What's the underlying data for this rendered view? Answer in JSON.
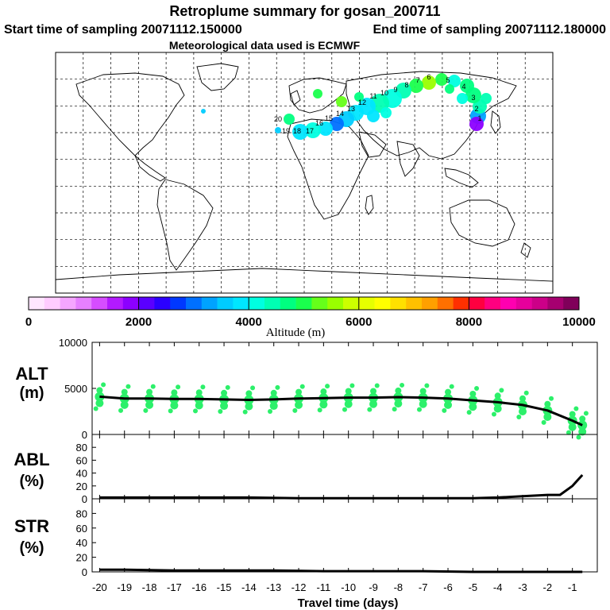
{
  "header": {
    "title": "Retroplume summary for gosan_200711",
    "start_label": "Start time of sampling 20071112.150000",
    "end_label": "End time of sampling 20071112.180000",
    "met_label": "Meteorological data used is ECMWF"
  },
  "colorbar": {
    "ticks": [
      "0",
      "2000",
      "4000",
      "6000",
      "8000",
      "10000"
    ],
    "label": "Altitude (m)",
    "colors": [
      "#ffe6ff",
      "#ffccff",
      "#f5a6ff",
      "#e680ff",
      "#d64dff",
      "#b31aff",
      "#8c00ff",
      "#5a00ff",
      "#2b00ff",
      "#0038ff",
      "#0070ff",
      "#00a3ff",
      "#00ccff",
      "#00e6ff",
      "#00ffe0",
      "#00ffb3",
      "#00ff80",
      "#1aff4d",
      "#66ff1a",
      "#99ff00",
      "#ccff00",
      "#e6ff00",
      "#ffff00",
      "#ffe000",
      "#ffc000",
      "#ffa000",
      "#ff7000",
      "#ff3000",
      "#ff0040",
      "#ff0080",
      "#ff00b0",
      "#e6009c",
      "#cc0088",
      "#a60070",
      "#80005a"
    ]
  },
  "map": {
    "coastline_color": "#000000",
    "labels": [
      "20",
      "19",
      "18",
      "17",
      "16",
      "15",
      "14",
      "13",
      "12",
      "11",
      "10",
      "9",
      "8",
      "7",
      "6",
      "5",
      "4",
      "3",
      "2",
      "1"
    ]
  },
  "chart_data": [
    {
      "type": "line",
      "panel": "ALT",
      "ylabel": "ALT\n(m)",
      "ylabel_line1": "ALT",
      "ylabel_line2": "(m)",
      "ylim": [
        0,
        10000
      ],
      "yticks": [
        "0",
        "5000",
        "10000"
      ],
      "x": [
        -20,
        -19,
        -18,
        -17,
        -16,
        -15,
        -14,
        -13,
        -12,
        -11,
        -10,
        -9,
        -8,
        -7,
        -6,
        -5,
        -4,
        -3,
        -2,
        -1,
        -0.6
      ],
      "mean_altitude": [
        4100,
        3900,
        3900,
        3850,
        3850,
        3800,
        3750,
        3800,
        3900,
        3950,
        4000,
        4000,
        4050,
        4000,
        3900,
        3700,
        3500,
        3200,
        2600,
        1500,
        1000
      ],
      "cluster_color": "#2cf06a",
      "line_color": "#000000"
    },
    {
      "type": "line",
      "panel": "ABL",
      "ylabel_line1": "ABL",
      "ylabel_line2": "(%)",
      "ylim": [
        0,
        100
      ],
      "yticks": [
        "0",
        "20",
        "40",
        "60",
        "80"
      ],
      "x": [
        -20,
        -18,
        -16,
        -14,
        -12,
        -10,
        -8,
        -6,
        -5,
        -4,
        -3,
        -2,
        -1.5,
        -1,
        -0.6
      ],
      "values": [
        2,
        2,
        2,
        2,
        1,
        1,
        1,
        1,
        1,
        2,
        4,
        6,
        6,
        20,
        37
      ]
    },
    {
      "type": "line",
      "panel": "STR",
      "ylabel_line1": "STR",
      "ylabel_line2": "(%)",
      "ylim": [
        0,
        100
      ],
      "yticks": [
        "0",
        "20",
        "40",
        "60",
        "80"
      ],
      "x": [
        -20,
        -19,
        -17,
        -15,
        -13,
        -11,
        -9,
        -7,
        -5,
        -3,
        -1,
        -0.6
      ],
      "values": [
        3,
        3,
        2,
        2,
        2,
        1,
        1,
        1,
        0,
        0,
        0,
        0
      ]
    }
  ],
  "xaxis": {
    "title": "Travel time (days)",
    "tick_labels": [
      "-20",
      "-19",
      "-18",
      "-17",
      "-16",
      "-15",
      "-14",
      "-13",
      "-12",
      "-11",
      "-10",
      "-9",
      "-8",
      "-7",
      "-6",
      "-5",
      "-4",
      "-3",
      "-2",
      "-1"
    ]
  }
}
